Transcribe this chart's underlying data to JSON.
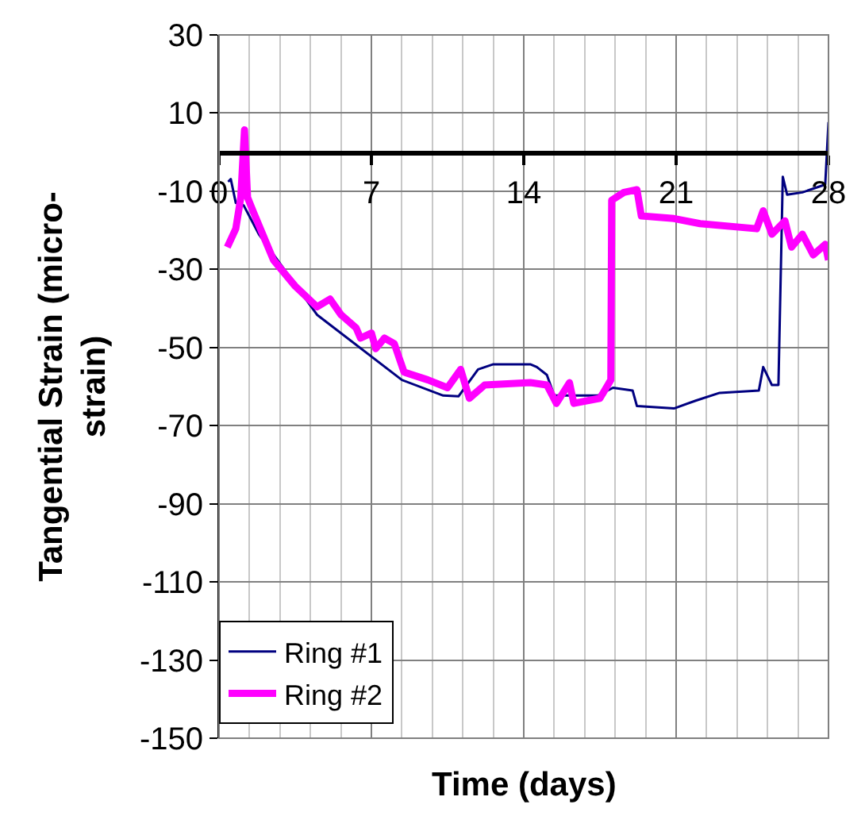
{
  "chart_data": {
    "type": "line",
    "xlabel": "Time (days)",
    "ylabel": "Tangential Strain (micro-strain)",
    "xlim": [
      0,
      28
    ],
    "xticks": [
      0,
      7,
      14,
      21,
      28
    ],
    "ylim": [
      -150,
      30
    ],
    "yticks": [
      -150,
      -130,
      -110,
      -90,
      -70,
      -50,
      -30,
      -10,
      10,
      30
    ],
    "grid": true,
    "legend": "bottom left",
    "marker": "none",
    "line_style": "solid",
    "series": [
      {
        "name": "Ring #1",
        "color": "#000080",
        "x": [
          0.42,
          0.54,
          0.77,
          1.13,
          1.83,
          4.5,
          8.4,
          10.3,
          11.0,
          11.9,
          12.6,
          14.3,
          14.6,
          15.06,
          15.4,
          17.4,
          18.1,
          19.0,
          19.2,
          20.9,
          21.9,
          23.0,
          24.8,
          25.0,
          25.4,
          25.7,
          25.9,
          26.1,
          26.8,
          27.85,
          28.0
        ],
        "values": [
          -7.6,
          -6.9,
          -13,
          -13.6,
          -21,
          -41.6,
          -58.3,
          -62.3,
          -62.5,
          -55.6,
          -54.3,
          -54.3,
          -55,
          -57,
          -62.3,
          -62.3,
          -60.3,
          -61,
          -65,
          -65.6,
          -63.6,
          -61.6,
          -61,
          -55,
          -59.6,
          -59.6,
          -6.3,
          -10.9,
          -10.3,
          -8.3,
          7.7
        ]
      },
      {
        "name": "Ring #2",
        "color": "#ff00ff",
        "x": [
          0.38,
          0.77,
          1.0,
          1.17,
          1.31,
          1.6,
          2.5,
          3.5,
          4.5,
          5.1,
          5.6,
          6.3,
          6.5,
          7.0,
          7.2,
          7.6,
          8.05,
          8.5,
          9.6,
          10.5,
          11.1,
          11.5,
          12.2,
          14.3,
          15.06,
          15.5,
          16.1,
          16.3,
          17.5,
          18.0,
          18.04,
          18.6,
          19.2,
          19.4,
          20.9,
          22.1,
          24.7,
          25.0,
          25.4,
          26.0,
          26.3,
          26.8,
          27.3,
          27.85,
          28.0
        ],
        "values": [
          -24.3,
          -19.6,
          -11.6,
          5.7,
          -11.6,
          -15.6,
          -27.6,
          -34.3,
          -39.6,
          -37.6,
          -41.6,
          -45,
          -47.6,
          -46.3,
          -50.3,
          -47.6,
          -49,
          -56.3,
          -58.3,
          -60.3,
          -55.6,
          -63,
          -59.6,
          -59,
          -59.6,
          -64.3,
          -59,
          -64.3,
          -63,
          -58.3,
          -12.3,
          -10.3,
          -9.6,
          -16.3,
          -17,
          -18.3,
          -19.6,
          -15,
          -21,
          -17.6,
          -24.3,
          -21,
          -26.3,
          -23.6,
          -27.6
        ]
      }
    ]
  }
}
